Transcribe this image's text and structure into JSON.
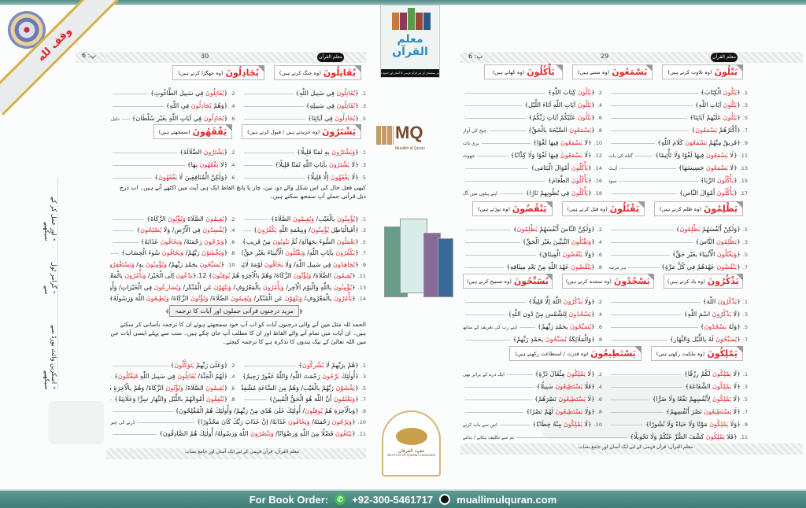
{
  "brand": {
    "colors": {
      "accent": "#e0262b",
      "teal": "#4f8c86",
      "gold": "#d4b34a"
    }
  },
  "corner_ribbon": "وقف لله",
  "margin_notes": [
    "اسکرین وائٹ بورڈ سے سیکھیے",
    "گرامر ٹول سے",
    "اور عمل کر کے سیکھیے"
  ],
  "cover": {
    "title": "معلم القرآن",
    "strip": "ہر مسلمان کے لیے قرآن فہمی کا آسان اور جامع نصاب"
  },
  "logo": {
    "mark": "MQ",
    "name": "Muallim ul Quran"
  },
  "seal": {
    "urdu": "معہد الفرقان",
    "english": "INSTITUTE OF QURANIC LANGUAGE"
  },
  "watermark": "Muallim ul Quran",
  "header": {
    "part_label": "پ: 6",
    "badge": "معلم القرآن",
    "right_page_number": "29",
    "left_page_number": "30"
  },
  "page_footer": "معلم القرآن: قرآن فہمی کے لیے ایک آسان اور جامع نصاب",
  "right_page": {
    "sections": [
      {
        "boxes": [
          {
            "verb": "يَتْلُونَ",
            "meaning": "(وہ تلاوت کرتے ہیں)"
          },
          {
            "verb": "يَسْمَعُونَ",
            "meaning": "(وہ سنتے ہیں)"
          },
          {
            "verb": "يَأْكُلُونَ",
            "meaning": "(وہ کھاتے ہیں)"
          }
        ],
        "items": [
          {
            "n": "1.",
            "t": "﴿[يَتْلُونَ] الْكِتَابَ﴾"
          },
          {
            "n": "2.",
            "t": "﴿[يَتْلُونَ] كِتَابَ اللّٰهِ﴾"
          },
          {
            "n": "3.",
            "t": "﴿[يَتْلُونَ] آيَاتِ اللّٰهِ﴾"
          },
          {
            "n": "4.",
            "t": "﴿[يَتْلُونَ] آيَاتِ اللّٰهِ آنَاءَ اللَّيْلِ﴾"
          },
          {
            "n": "5.",
            "t": "﴿[يَتْلُونَ] عَلَيْهِمْ آيَاتِنَا﴾"
          },
          {
            "n": "6.",
            "t": "﴿[يَتْلُونَ] عَلَيْكُمْ آيَاتِ رَبِّكُمْ﴾"
          },
          {
            "n": "7.",
            "t": "﴿أَكْثَرُهُمْ [يَسْمَعُونَ]﴾"
          },
          {
            "n": "8.",
            "t": "﴿[يَسْمَعُونَ] الصَّيْحَةَ بِالْحَقِّ﴾",
            "note": "چیخ کی آواز"
          },
          {
            "n": "9.",
            "t": "﴿فَرِيقٌ مِنْهُمْ [يَسْمَعُونَ] كَلَامَ اللّٰهِ﴾"
          },
          {
            "n": "10.",
            "t": "﴿لَا [يَسْمَعُونَ] فِيهَا لَغْوًا﴾",
            "note": "بری بات"
          },
          {
            "n": "11.",
            "t": "﴿لَا [يَسْمَعُونَ] فِيهَا لَغْوًا وَلَا تَأْثِيمًا﴾",
            "note": "گناہ کی بات"
          },
          {
            "n": "12.",
            "t": "﴿لَا [يَسْمَعُونَ] فِيهَا لَغْوًا وَلَا كِذَّابًا﴾",
            "note": "جھوٹ"
          },
          {
            "n": "13.",
            "t": "﴿لَا [يَسْمَعُونَ] حَسِيسَهَا﴾",
            "note": "آہٹ"
          },
          {
            "n": "14.",
            "t": "﴿[يَأْكُلُونَ] أَمْوَالَ الْيَتَامَى﴾"
          },
          {
            "n": "15.",
            "t": "﴿[يَأْكُلُونَ] الرِّبَا﴾",
            "note": "سود"
          },
          {
            "n": "16.",
            "t": "﴿[يَأْكُلُونَ] الطَّعَامَ﴾"
          },
          {
            "n": "17.",
            "t": "﴿[يَأْكُلُونَ] أَمْوَالَ النَّاسِ﴾"
          },
          {
            "n": "18.",
            "t": "﴿[يَأْكُلُونَ] فِي بُطُونِهِمْ نَارًا﴾",
            "note": "اپنے پیٹوں میں آگ"
          }
        ]
      },
      {
        "boxes": [
          {
            "verb": "يَظْلِمُونَ",
            "meaning": "(وہ ظلم کرتے ہیں)"
          },
          {
            "verb": "يَقْتُلُونَ",
            "meaning": "(وہ قتل کرتے ہیں)"
          },
          {
            "verb": "يَنْقُضُونَ",
            "meaning": "(وہ توڑتے ہیں)"
          }
        ],
        "items": [
          {
            "n": "1.",
            "t": "﴿وَلٰكِنْ أَنْفُسَهُمْ [يَظْلِمُونَ]﴾"
          },
          {
            "n": "2.",
            "t": "﴿وَلٰكِنَّ النَّاسَ أَنْفُسَهُمْ [يَظْلِمُونَ]﴾"
          },
          {
            "n": "3.",
            "t": "﴿[يَظْلِمُونَ] النَّاسَ﴾"
          },
          {
            "n": "4.",
            "t": "﴿[وَيَقْتُلُونَ] النَّبِيِّينَ بِغَيْرِ الْحَقِّ﴾"
          },
          {
            "n": "5.",
            "t": "﴿[وَيَقْتُلُونَ] الْأَنْبِيَاءَ بِغَيْرِ حَقٍّ﴾"
          },
          {
            "n": "6.",
            "t": "﴿وَلَا [يَنْقُضُونَ] الْمِيثَاقَ﴾"
          },
          {
            "n": "7.",
            "t": "﴿[يَنْقُضُونَ] عَهْدَهُمْ فِي كُلِّ مَرَّةٍ﴾",
            "note": "ہر مرتبہ"
          },
          {
            "n": "8.",
            "t": "﴿[يَنْقُضُونَ] عَهْدَ اللّٰهِ مِنْ بَعْدِ مِيثَاقِهِ﴾"
          }
        ]
      },
      {
        "boxes": [
          {
            "verb": "يَذْكُرُونَ",
            "meaning": "(وہ یاد کرتے ہیں)"
          },
          {
            "verb": "يَسْجُدُونَ",
            "meaning": "(وہ سجدہ کرتے ہیں)"
          },
          {
            "verb": "يُسَبِّحُونَ",
            "meaning": "(وہ تسبیح کرتے ہیں)"
          }
        ],
        "items": [
          {
            "n": "1.",
            "t": "﴿[يَذْكُرُونَ] اللّٰهَ﴾"
          },
          {
            "n": "2.",
            "t": "﴿وَلَا [يَذْكُرُونَ] اللّٰهَ إِلَّا قَلِيلًا﴾"
          },
          {
            "n": "3.",
            "t": "﴿لَا [يَذْكُرُونَ] اسْمَ اللّٰهِ﴾"
          },
          {
            "n": "4.",
            "t": "﴿[يَسْجُدُونَ] لِلشَّمْسِ مِنْ دُونِ اللّٰهِ﴾"
          },
          {
            "n": "5.",
            "t": "﴿وَلَهُ [يَسْجُدُونَ]﴾"
          },
          {
            "n": "6.",
            "t": "﴿[يُسَبِّحُونَ] بِحَمْدِ رَبِّهِمْ﴾",
            "note": "اپنے رب کی تعریف کے ساتھ"
          },
          {
            "n": "7.",
            "t": "﴿[يُسَبِّحُونَ] لَهُ بِاللَّيْلِ وَالنَّهَارِ﴾"
          },
          {
            "n": "8.",
            "t": "﴿وَالْمَلَائِكَةُ [يُسَبِّحُونَ] بِحَمْدِ رَبِّهِمْ﴾"
          }
        ]
      },
      {
        "boxes": [
          {
            "verb": "يَمْلِكُونَ",
            "meaning": "(وہ ملکیت رکھتے ہیں)"
          },
          {
            "verb": "يَسْتَطِيعُونَ",
            "meaning": "(وہ قدرت / استطاعت رکھتے ہیں)"
          }
        ],
        "items": [
          {
            "n": "1.",
            "t": "﴿لَا [يَمْلِكُونَ] لَكُمْ رِزْقًا﴾"
          },
          {
            "n": "2.",
            "t": "﴿لَا [يَمْلِكُونَ] مِثْقَالَ ذَرَّةٍ﴾",
            "note": "ایک ذرے کے برابر بھی"
          },
          {
            "n": "3.",
            "t": "﴿لَا [يَمْلِكُونَ] الشَّفَاعَةَ﴾"
          },
          {
            "n": "4.",
            "t": "﴿فَلَا [يَسْتَطِيعُونَ] سَبِيلًا﴾"
          },
          {
            "n": "5.",
            "t": "﴿لَا [يَمْلِكُونَ] لِأَنْفُسِهِمْ نَفْعًا وَلَا ضَرًّا﴾"
          },
          {
            "n": "6.",
            "t": "﴿لَا [يَسْتَطِيعُونَ] نَصْرَهُمْ﴾"
          },
          {
            "n": "7.",
            "t": "﴿لَا [يَسْتَطِيعُونَ] نَصْرَ أَنْفُسِهِمْ﴾"
          },
          {
            "n": "8.",
            "t": "﴿وَلَا [يَسْتَطِيعُونَ] لَهُمْ نَصْرًا﴾"
          },
          {
            "n": "9.",
            "t": "﴿وَلَا [يَمْلِكُونَ] مَوْتًا وَلَا حَيَاةً وَلَا نُشُورًا﴾"
          },
          {
            "n": "10.",
            "t": "﴿لَا [يَمْلِكُونَ] مِنْهُ خِطَابًا﴾",
            "note": "اس سے بات کرنے"
          },
          {
            "n": "11.",
            "t": "﴿فَلَا [يَمْلِكُونَ] كَشْفَ الضُّرِّ عَنْكُمْ وَلَا تَحْوِيلًا﴾",
            "note": "تم سے تکلیف ہٹانے / بدلنے",
            "full": true
          },
          {
            "n": "12.",
            "t": "﴿لَا [يَسْتَطِيعُونَ] نَصْرَكُمْ وَلَا أَنْفُسَهُمْ [يَنْصُرُونَ]﴾",
            "full": true
          }
        ]
      }
    ]
  },
  "left_page": {
    "sections": [
      {
        "boxes": [
          {
            "verb": "يُقَاتِلُونَ",
            "meaning": "(وہ جنگ کرتے ہیں)"
          },
          {
            "verb": "يُجَادِلُونَ",
            "meaning": "(وہ جھگڑا کرتے ہیں)"
          }
        ],
        "items": [
          {
            "n": "1.",
            "t": "﴿[يُقَاتِلُونَ] فِي سَبِيلِ اللّٰهِ﴾"
          },
          {
            "n": "2.",
            "t": "﴿[يُقَاتِلُونَ] فِي سَبِيلِ الطَّاغُوتِ﴾"
          },
          {
            "n": "3.",
            "t": "﴿[يُقَاتِلُونَ] فِي سَبِيلِهِ﴾"
          },
          {
            "n": "4.",
            "t": "﴿وَهُمْ [يُجَادِلُونَ] فِي اللّٰهِ﴾"
          },
          {
            "n": "5.",
            "t": "﴿[يُجَادِلُونَ] فِي آيَاتِنَا﴾"
          },
          {
            "n": "6.",
            "t": "﴿[يُجَادِلُونَ] فِي آيَاتِ اللّٰهِ بِغَيْرِ سُلْطَانٍ﴾",
            "note": "دلیل کے بغیر"
          }
        ]
      },
      {
        "boxes": [
          {
            "verb": "يَشْتَرُونَ",
            "meaning": "(وہ خریدتے ہیں / قبول کرتے ہیں)"
          },
          {
            "verb": "يَفْقَهُونَ",
            "meaning": "(سمجھتے ہیں)"
          }
        ],
        "items": [
          {
            "n": "1.",
            "t": "﴿[وَيَشْتَرُونَ] بِهِ ثَمَنًا قَلِيلًا﴾"
          },
          {
            "n": "2.",
            "t": "﴿[يَشْتَرُونَ] الضَّلَالَةَ﴾"
          },
          {
            "n": "3.",
            "t": "﴿لَا [يَشْتَرُونَ] بِآيَاتِ اللّٰهِ ثَمَنًا قَلِيلًا﴾"
          },
          {
            "n": "4.",
            "t": "﴿لَا [يَفْقَهُونَ] بِهَا﴾"
          },
          {
            "n": "5.",
            "t": "﴿لَا [يَفْقَهُونَ] إِلَّا قَلِيلًا﴾"
          },
          {
            "n": "6.",
            "t": "﴿وَلٰكِنَّ الْمُنَافِقِينَ لَا [يَفْقَهُونَ]﴾"
          }
        ]
      }
    ],
    "instruction": "کبھی فعل حال کی اس شکل والے دو، تین، چار یا پانچ الفاظ ایک ہی آیت میں اکٹھے آتے ہیں۔ اب درج ذیل قرآنی جملے آپ سمجھ سکتے ہیں۔",
    "list1": [
      {
        "n": "1.",
        "t": "﴿[يُؤْمِنُونَ] بِالْغَيْبِ/ [وَيُقِيمُونَ] الصَّلَاةَ﴾"
      },
      {
        "n": "2.",
        "t": "﴿[يُقِيمُونَ] الصَّلَاةَ [وَيُؤْتُونَ] الزَّكَاةَ﴾"
      },
      {
        "n": "3.",
        "t": "﴿أَفَبِالْبَاطِلِ [يُؤْمِنُونَ]/ وَبِنِعْمَةِ اللّٰهِ [يَكْفُرُونَ]﴾"
      },
      {
        "n": "4.",
        "t": "﴿[يُفْسِدُونَ] فِي الْأَرْضِ/ وَلَا [يُصْلِحُونَ]﴾"
      },
      {
        "n": "5.",
        "t": "﴿[يَعْمَلُونَ] السُّوءَ بِجَهَالَةٍ/ ثُمَّ [يَتُوبُونَ] مِنْ قَرِيبٍ﴾"
      },
      {
        "n": "6.",
        "t": "﴿[وَيَرْجُونَ] رَحْمَتَهُ/ [وَيَخَافُونَ] عَذَابَهُ﴾"
      },
      {
        "n": "7.",
        "t": "﴿[يَكْفُرُونَ] بِآيَاتِ اللّٰهِ/ [وَيَقْتُلُونَ] الْأَنْبِيَاءَ بِغَيْرِ حَقٍّ﴾"
      },
      {
        "n": "8.",
        "t": "﴿[وَيَخْشَوْنَ] رَبَّهُمْ/ [وَيَخَافُونَ] سُوءَ الْحِسَابِ﴾"
      },
      {
        "n": "9.",
        "t": "﴿[يُجَاهِدُونَ] فِي سَبِيلِ اللّٰهِ/ وَلَا [يَخَافُونَ] لَوْمَةَ لَائِمٍ﴾"
      },
      {
        "n": "10.",
        "t": "﴿[يُسَبِّحُونَ] بِحَمْدِ رَبِّهِمْ/ [وَيُؤْمِنُونَ] بِهِ/ [وَيَسْتَغْفِرُونَ]﴾"
      },
      {
        "n": "11.",
        "t": "﴿[يُقِيمُونَ] الصَّلَاةَ/ [وَيُؤْتُونَ] الزَّكَاةَ/ وَهُمْ بِالْآخِرَةِ هُمْ [يُوقِنُونَ]﴾ 12.﴿[يَدْعُونَ] إِلَى الْخَيْرِ/ [وَيَأْمُرُونَ] بِالْمَعْرُوفِ/ [وَيَنْهَوْنَ] عَنِ الْمُنْكَرِ﴾",
        "full": true
      },
      {
        "n": "13.",
        "t": "﴿[يُؤْمِنُونَ] بِاللّٰهِ وَالْيَوْمِ الْآخِرِ/ [وَيَأْمُرُونَ] بِالْمَعْرُوفِ/ [وَيَنْهَوْنَ] عَنِ الْمُنْكَرِ/ [وَيُسَارِعُونَ] فِي الْخَيْرَاتِ/ وَأُولٰئِكَ مِنَ الصَّالِحِينَ﴾",
        "full": true
      },
      {
        "n": "14.",
        "t": "﴿[يَأْمُرُونَ] بِالْمَعْرُوفِ/ [وَيَنْهَوْنَ] عَنِ الْمُنْكَرِ/ [وَيُقِيمُونَ] الصَّلَاةَ/ [وَيُؤْتُونَ] الزَّكَاةَ/ [وَيُطِيعُونَ] اللّٰهَ وَرَسُولَهُ﴾",
        "full": true
      }
    ],
    "banner": "مزید درجنوں قرآنی جملوں اور آیات کا ترجمہ",
    "paragraph": "الحمد للہ مثل میں آنے والی درجنوں آیات کو اب آپ خود سمجھتے ہوئے ان کا ترجمہ بآسانی کر سکتے ہیں۔ ان آیات میں تمام آنے والے الفاظ اور ان کا مطلب آپ جان چکے ہیں۔ سب سے پہلے ایسی آیات جن میں اللہ تعالیٰ کے نیک بندوں کا تذکرہ ہے کا ترجمہ کیجئے۔",
    "list2": [
      {
        "n": "1.",
        "t": "﴿هُمْ بِرَبِّهِمْ لَا [يُشْرِكُونَ]﴾"
      },
      {
        "n": "2.",
        "t": "﴿وَعَلَىٰ رَبِّهِمْ [يَتَوَكَّلُونَ]﴾"
      },
      {
        "n": "3.",
        "t": "﴿أُولٰئِكَ [يَرْجُونَ] رَحْمَتَ اللّٰهِ/ وَاللّٰهُ غَفُورٌ رَحِيمٌ﴾"
      },
      {
        "n": "4.",
        "t": "﴿لَهُمُ الْجَنَّةَ/ [يُقَاتِلُونَ] فِي سَبِيلِ اللّٰهِ [فَيَقْتُلُونَ]﴾"
      },
      {
        "n": "5.",
        "t": "﴿[يَخْشَوْنَ] رَبَّهُمْ بِالْغَيْبِ/ وَهُمْ مِنَ السَّاعَةِ مُشْفِقُونَ﴾"
      },
      {
        "n": "6.",
        "t": "﴿[يُقِيمُونَ] الصَّلَاةَ/ [وَيُؤْتُونَ] الزَّكَاةَ/ وَهُمْ بِالْآخِرَةِ هُمْ [يُوقِنُونَ]﴾"
      },
      {
        "n": "7.",
        "t": "﴿[وَيَعْلَمُونَ] أَنَّ اللّٰهَ هُوَ الْحَقُّ الْمُبِينُ﴾"
      },
      {
        "n": "8.",
        "t": "﴿[يُنْفِقُونَ] أَمْوَالَهُمْ بِاللَّيْلِ وَالنَّهَارِ سِرًّا وَعَلَانِيَةً﴾"
      },
      {
        "n": "9.",
        "t": "﴿وَبِالْآخِرَةِ هُمْ [يُوقِنُونَ]/ أُولٰئِكَ عَلَىٰ هُدًى مِنْ رَبِّهِمْ/ وَأُولٰئِكَ هُمُ الْمُفْلِحُونَ﴾",
        "full": true
      },
      {
        "n": "10.",
        "t": "﴿[وَيَرْجُونَ] رَحْمَتَهُ/ [وَيَخَافُونَ] عَذَابَهُ/ إِنَّ عَذَابَ رَبِّكَ كَانَ مَحْذُورًا﴾",
        "note": "ڈرنے کی چیز",
        "full": true
      },
      {
        "n": "11.",
        "t": "﴿[يَبْتَغُونَ] فَضْلًا مِنَ اللّٰهِ وَرِضْوَانًا/ [وَيَنْصُرُونَ] اللّٰهَ وَرَسُولَهُ/ أُولٰئِكَ هُمُ الصَّادِقُونَ﴾",
        "full": true
      }
    ]
  },
  "order_bar": {
    "label": "For Book Order:",
    "phone": "+92-300-5461717",
    "website": "muallimulquran.com",
    "whatsapp_icon": "whatsapp-icon",
    "web_icon": "globe-icon"
  }
}
